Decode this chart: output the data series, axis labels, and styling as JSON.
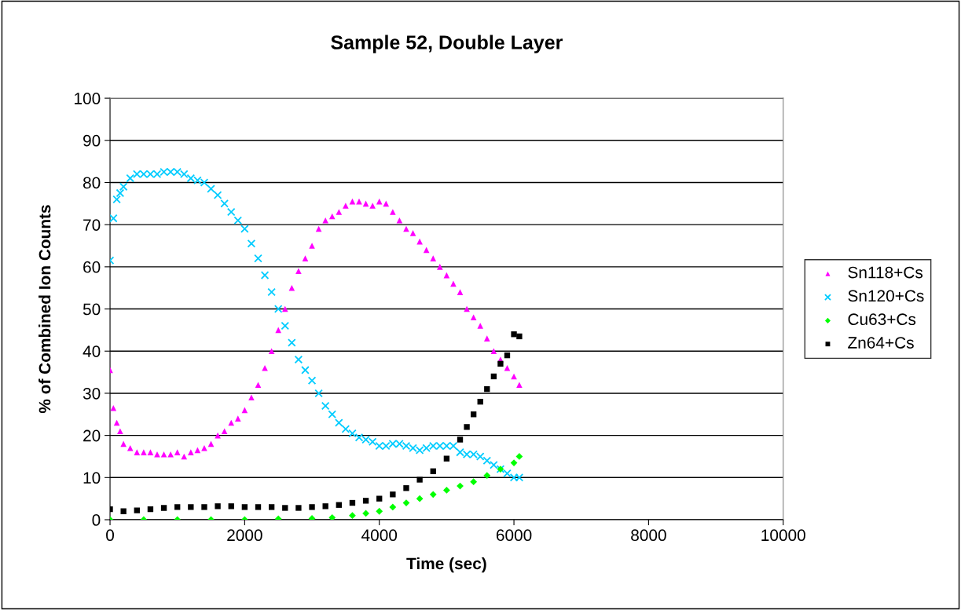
{
  "chart_data": {
    "type": "scatter",
    "title": "Sample 52, Double Layer",
    "xlabel": "Time (sec)",
    "ylabel": "% of Combined Ion Counts",
    "xlim": [
      0,
      10000
    ],
    "xticks": [
      0,
      2000,
      4000,
      6000,
      8000,
      10000
    ],
    "ylim": [
      0,
      100
    ],
    "yticks": [
      0,
      10,
      20,
      30,
      40,
      50,
      60,
      70,
      80,
      90,
      100
    ],
    "grid": "y",
    "legend": "right",
    "series": [
      {
        "name": "Sn118+Cs",
        "color": "#ff00ff",
        "marker": "triangle",
        "x": [
          0,
          50,
          100,
          150,
          200,
          300,
          400,
          500,
          600,
          700,
          800,
          900,
          1000,
          1100,
          1200,
          1300,
          1400,
          1500,
          1600,
          1700,
          1800,
          1900,
          2000,
          2100,
          2200,
          2300,
          2400,
          2500,
          2600,
          2700,
          2800,
          2900,
          3000,
          3100,
          3200,
          3300,
          3400,
          3500,
          3600,
          3700,
          3800,
          3900,
          4000,
          4100,
          4200,
          4300,
          4400,
          4500,
          4600,
          4700,
          4800,
          4900,
          5000,
          5100,
          5200,
          5300,
          5400,
          5500,
          5600,
          5700,
          5800,
          5900,
          6000,
          6080
        ],
        "values": [
          35.5,
          26.5,
          23,
          21,
          18,
          17,
          16,
          16,
          16,
          15.5,
          15.5,
          15.5,
          16,
          15,
          16,
          16.5,
          17,
          18,
          20,
          21,
          23,
          24,
          26,
          29,
          32,
          36,
          40,
          45,
          50,
          55,
          59,
          62,
          65,
          69,
          71,
          72,
          73,
          74.5,
          75.5,
          75.5,
          75,
          74.5,
          75.5,
          75,
          73,
          71,
          69,
          68,
          66,
          64,
          62,
          60,
          58,
          56,
          54,
          50,
          48,
          46,
          43,
          40,
          38,
          36,
          34,
          32
        ]
      },
      {
        "name": "Sn120+Cs",
        "color": "#00ccff",
        "marker": "cross",
        "x": [
          0,
          50,
          100,
          150,
          200,
          300,
          400,
          500,
          600,
          700,
          800,
          900,
          1000,
          1100,
          1200,
          1300,
          1400,
          1500,
          1600,
          1700,
          1800,
          1900,
          2000,
          2100,
          2200,
          2300,
          2400,
          2500,
          2600,
          2700,
          2800,
          2900,
          3000,
          3100,
          3200,
          3300,
          3400,
          3500,
          3600,
          3700,
          3800,
          3900,
          4000,
          4100,
          4200,
          4300,
          4400,
          4500,
          4600,
          4700,
          4800,
          4900,
          5000,
          5100,
          5200,
          5300,
          5400,
          5500,
          5600,
          5700,
          5800,
          5900,
          6000,
          6080
        ],
        "values": [
          61.5,
          71.5,
          76,
          77.5,
          79,
          81,
          82,
          82,
          82,
          82,
          82.5,
          82.5,
          82.5,
          82,
          81,
          80.5,
          80,
          78.5,
          77,
          75,
          73,
          71,
          69,
          65.5,
          62,
          58,
          54,
          50,
          46,
          42,
          38,
          35.5,
          33,
          30,
          27,
          25,
          23,
          21.5,
          20.5,
          19.5,
          19,
          18.5,
          17.5,
          17.5,
          18,
          18,
          17.5,
          17,
          16.5,
          17,
          17.5,
          17.5,
          17.5,
          17.5,
          16,
          15.5,
          15.5,
          15,
          14,
          13,
          12,
          11,
          10,
          10
        ]
      },
      {
        "name": "Cu63+Cs",
        "color": "#00ff00",
        "marker": "diamond",
        "x": [
          0,
          500,
          1000,
          1500,
          2000,
          2500,
          3000,
          3300,
          3600,
          3800,
          4000,
          4200,
          4400,
          4600,
          4800,
          5000,
          5200,
          5400,
          5600,
          5800,
          6000,
          6080
        ],
        "values": [
          0,
          0,
          0,
          0,
          0,
          0.2,
          0.3,
          0.5,
          1,
          1.5,
          2,
          3,
          4,
          5,
          6,
          7,
          8,
          9,
          10.5,
          12,
          13.5,
          15
        ]
      },
      {
        "name": "Zn64+Cs",
        "color": "#000000",
        "marker": "square",
        "x": [
          0,
          200,
          400,
          600,
          800,
          1000,
          1200,
          1400,
          1600,
          1800,
          2000,
          2200,
          2400,
          2600,
          2800,
          3000,
          3200,
          3400,
          3600,
          3800,
          4000,
          4200,
          4400,
          4600,
          4800,
          5000,
          5200,
          5300,
          5400,
          5500,
          5600,
          5700,
          5800,
          5900,
          6000,
          6080
        ],
        "values": [
          2.5,
          2,
          2.2,
          2.5,
          2.8,
          3,
          3,
          3,
          3.2,
          3.2,
          3,
          3,
          3,
          2.8,
          2.8,
          3,
          3.2,
          3.5,
          4,
          4.5,
          5,
          6,
          7.5,
          9.5,
          11.5,
          14.5,
          19,
          22,
          25,
          28,
          31,
          34,
          37,
          39,
          44,
          43.5
        ]
      }
    ]
  }
}
